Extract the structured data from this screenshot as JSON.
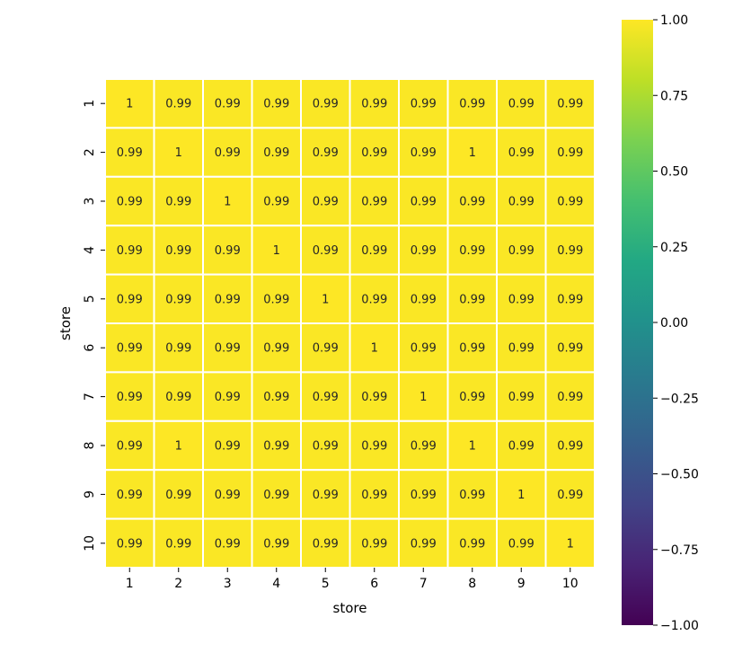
{
  "chart_data": {
    "type": "heatmap",
    "title": "",
    "xlabel": "store",
    "ylabel": "store",
    "x_categories": [
      "1",
      "2",
      "3",
      "4",
      "5",
      "6",
      "7",
      "8",
      "9",
      "10"
    ],
    "y_categories": [
      "1",
      "2",
      "3",
      "4",
      "5",
      "6",
      "7",
      "8",
      "9",
      "10"
    ],
    "values": [
      [
        1,
        0.99,
        0.99,
        0.99,
        0.99,
        0.99,
        0.99,
        0.99,
        0.99,
        0.99
      ],
      [
        0.99,
        1,
        0.99,
        0.99,
        0.99,
        0.99,
        0.99,
        1,
        0.99,
        0.99
      ],
      [
        0.99,
        0.99,
        1,
        0.99,
        0.99,
        0.99,
        0.99,
        0.99,
        0.99,
        0.99
      ],
      [
        0.99,
        0.99,
        0.99,
        1,
        0.99,
        0.99,
        0.99,
        0.99,
        0.99,
        0.99
      ],
      [
        0.99,
        0.99,
        0.99,
        0.99,
        1,
        0.99,
        0.99,
        0.99,
        0.99,
        0.99
      ],
      [
        0.99,
        0.99,
        0.99,
        0.99,
        0.99,
        1,
        0.99,
        0.99,
        0.99,
        0.99
      ],
      [
        0.99,
        0.99,
        0.99,
        0.99,
        0.99,
        0.99,
        1,
        0.99,
        0.99,
        0.99
      ],
      [
        0.99,
        1,
        0.99,
        0.99,
        0.99,
        0.99,
        0.99,
        1,
        0.99,
        0.99
      ],
      [
        0.99,
        0.99,
        0.99,
        0.99,
        0.99,
        0.99,
        0.99,
        0.99,
        1,
        0.99
      ],
      [
        0.99,
        0.99,
        0.99,
        0.99,
        0.99,
        0.99,
        0.99,
        0.99,
        0.99,
        1
      ]
    ],
    "annotations": [
      [
        "1",
        "0.99",
        "0.99",
        "0.99",
        "0.99",
        "0.99",
        "0.99",
        "0.99",
        "0.99",
        "0.99"
      ],
      [
        "0.99",
        "1",
        "0.99",
        "0.99",
        "0.99",
        "0.99",
        "0.99",
        "1",
        "0.99",
        "0.99"
      ],
      [
        "0.99",
        "0.99",
        "1",
        "0.99",
        "0.99",
        "0.99",
        "0.99",
        "0.99",
        "0.99",
        "0.99"
      ],
      [
        "0.99",
        "0.99",
        "0.99",
        "1",
        "0.99",
        "0.99",
        "0.99",
        "0.99",
        "0.99",
        "0.99"
      ],
      [
        "0.99",
        "0.99",
        "0.99",
        "0.99",
        "1",
        "0.99",
        "0.99",
        "0.99",
        "0.99",
        "0.99"
      ],
      [
        "0.99",
        "0.99",
        "0.99",
        "0.99",
        "0.99",
        "1",
        "0.99",
        "0.99",
        "0.99",
        "0.99"
      ],
      [
        "0.99",
        "0.99",
        "0.99",
        "0.99",
        "0.99",
        "0.99",
        "1",
        "0.99",
        "0.99",
        "0.99"
      ],
      [
        "0.99",
        "1",
        "0.99",
        "0.99",
        "0.99",
        "0.99",
        "0.99",
        "1",
        "0.99",
        "0.99"
      ],
      [
        "0.99",
        "0.99",
        "0.99",
        "0.99",
        "0.99",
        "0.99",
        "0.99",
        "0.99",
        "1",
        "0.99"
      ],
      [
        "0.99",
        "0.99",
        "0.99",
        "0.99",
        "0.99",
        "0.99",
        "0.99",
        "0.99",
        "0.99",
        "1"
      ]
    ],
    "colormap": "viridis",
    "vmin": -1.0,
    "vmax": 1.0,
    "cell_border_color": "#ffffff",
    "colorbar": {
      "ticks": [
        1.0,
        0.75,
        0.5,
        0.25,
        0.0,
        -0.25,
        -0.5,
        -0.75,
        -1.0
      ],
      "tick_labels": [
        "1.00",
        "0.75",
        "0.50",
        "0.25",
        "0.00",
        "−0.25",
        "−0.50",
        "−0.75",
        "−1.00"
      ]
    }
  }
}
